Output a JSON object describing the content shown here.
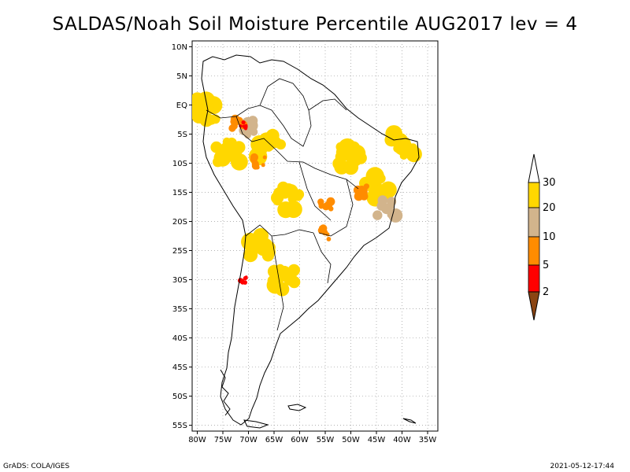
{
  "title": "SALDAS/Noah Soil Moisture Percentile AUG2017 lev = 4",
  "footer": {
    "left": "GrADS: COLA/IGES",
    "right": "2021-05-12-17:44"
  },
  "map": {
    "lat_labels": [
      "10N",
      "5N",
      "EQ",
      "5S",
      "10S",
      "15S",
      "20S",
      "25S",
      "30S",
      "35S",
      "40S",
      "45S",
      "50S",
      "55S"
    ],
    "lon_labels": [
      "80W",
      "75W",
      "70W",
      "65W",
      "60W",
      "55W",
      "50W",
      "45W",
      "40W",
      "35W"
    ],
    "lat_range": [
      -56,
      11
    ],
    "lon_range": [
      -81,
      -33
    ],
    "grid": "dotted"
  },
  "colorbar": {
    "levels": [
      "2",
      "5",
      "10",
      "20",
      "30"
    ],
    "colors": {
      "below_2": "#8b4513",
      "2_5": "#ff0000",
      "5_10": "#ff8c00",
      "10_20": "#d2b48c",
      "20_30": "#ffd700",
      "above_30": "#ffffff"
    }
  },
  "chart_data": {
    "type": "heatmap",
    "title": "SALDAS/Noah Soil Moisture Percentile AUG2017 lev = 4",
    "xlabel": "",
    "ylabel": "",
    "xlim": [
      -81,
      -33
    ],
    "ylim": [
      -56,
      11
    ],
    "scale_levels": [
      2,
      5,
      10,
      20,
      30
    ],
    "regions": [
      {
        "lon": -70,
        "lat": -4,
        "level": "10-20"
      },
      {
        "lon": -72,
        "lat": -3,
        "level": "5-10"
      },
      {
        "lon": -71,
        "lat": -3.5,
        "level": "2-5"
      },
      {
        "lon": -66,
        "lat": -7,
        "level": "20-30"
      },
      {
        "lon": -74,
        "lat": -8,
        "level": "20-30"
      },
      {
        "lon": -68,
        "lat": -10,
        "level": "5-10"
      },
      {
        "lon": -78,
        "lat": -1,
        "level": "20-30"
      },
      {
        "lon": -50,
        "lat": -9,
        "level": "20-30"
      },
      {
        "lon": -45,
        "lat": -14,
        "level": "20-30"
      },
      {
        "lon": -43,
        "lat": -18,
        "level": "10-20"
      },
      {
        "lon": -55,
        "lat": -17,
        "level": "5-10"
      },
      {
        "lon": -48,
        "lat": -15,
        "level": "5-10"
      },
      {
        "lon": -55,
        "lat": -22,
        "level": "5-10"
      },
      {
        "lon": -71,
        "lat": -30,
        "level": "2-5"
      },
      {
        "lon": -63,
        "lat": -30,
        "level": "20-30"
      },
      {
        "lon": -68,
        "lat": -24,
        "level": "20-30"
      },
      {
        "lon": -62,
        "lat": -16,
        "level": "20-30"
      },
      {
        "lon": -40,
        "lat": -7,
        "level": "20-30"
      }
    ]
  }
}
